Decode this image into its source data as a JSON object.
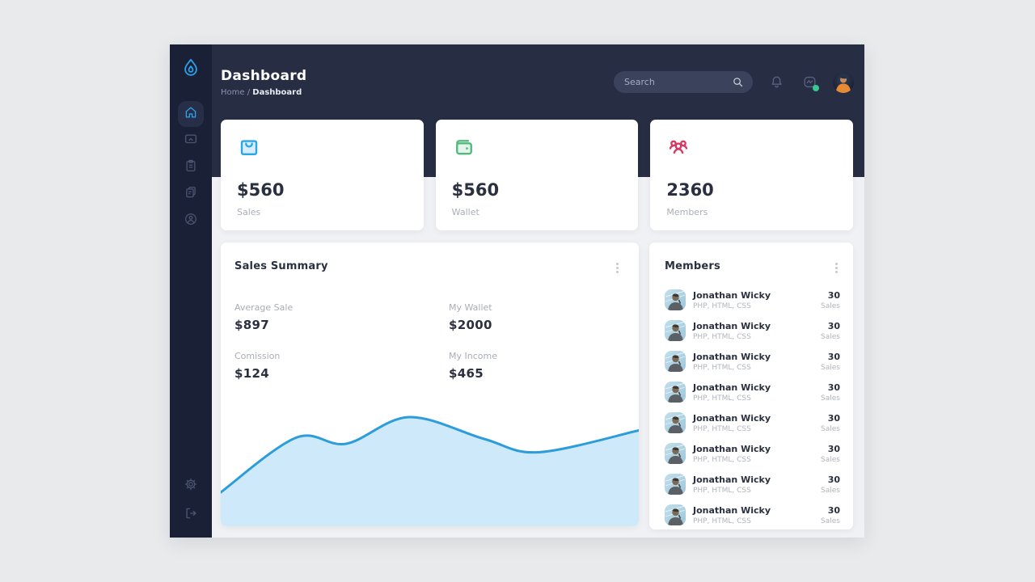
{
  "colors": {
    "outer_background": "#e9eaec",
    "sidebar": "#1a2036",
    "header": "#272e44",
    "content_background": "#f0f1f4",
    "accent_blue": "#2e9fe8",
    "accent_green": "#53b97f",
    "accent_pink": "#d63864",
    "chart_line": "#2d9cdb",
    "chart_fill": "#cde9fa"
  },
  "sidebar": {
    "logo_icon": "drop-logo-icon",
    "items": [
      {
        "id": "home",
        "icon": "home-icon",
        "active": true
      },
      {
        "id": "screen",
        "icon": "screen-share-icon",
        "active": false
      },
      {
        "id": "tasks",
        "icon": "clipboard-icon",
        "active": false
      },
      {
        "id": "documents",
        "icon": "documents-icon",
        "active": false
      },
      {
        "id": "profile",
        "icon": "user-circle-icon",
        "active": false
      }
    ],
    "bottom_items": [
      {
        "id": "settings",
        "icon": "gear-icon"
      },
      {
        "id": "logout",
        "icon": "logout-icon"
      }
    ]
  },
  "header": {
    "title": "Dashboard",
    "breadcrumb": {
      "home": "Home",
      "separator": "/",
      "current": "Dashboard"
    },
    "search": {
      "placeholder": "Search",
      "icon": "search-icon"
    },
    "icons": [
      "bell-icon",
      "chat-icon"
    ],
    "chat_status_dot_color": "#37c98e",
    "avatar": "user-avatar"
  },
  "stat_cards": [
    {
      "icon": "shopping-bag-icon",
      "value": "$560",
      "label": "Sales",
      "accent": "#2aa5e5"
    },
    {
      "icon": "wallet-icon",
      "value": "$560",
      "label": "Wallet",
      "accent": "#53b97f"
    },
    {
      "icon": "members-icon",
      "value": "2360",
      "label": "Members",
      "accent": "#d63864"
    }
  ],
  "sales_summary": {
    "title": "Sales Summary",
    "menu_icon": "kebab-menu-icon",
    "stats": [
      {
        "label": "Average Sale",
        "value": "$897"
      },
      {
        "label": "My Wallet",
        "value": "$2000"
      },
      {
        "label": "Comission",
        "value": "$124"
      },
      {
        "label": "My Income",
        "value": "$465"
      }
    ]
  },
  "chart_data": {
    "type": "area",
    "title": "",
    "xlabel": "",
    "ylabel": "",
    "x": [
      0,
      0.18,
      0.3,
      0.45,
      0.63,
      0.76,
      1.0
    ],
    "values": [
      28,
      73,
      68,
      90,
      72,
      61,
      79
    ],
    "ylim": [
      0,
      100
    ],
    "grid": false,
    "legend": false,
    "axes_visible": false,
    "line_color": "#2d9cdb",
    "fill_color": "#cde9fa"
  },
  "members_panel": {
    "title": "Members",
    "menu_icon": "kebab-menu-icon",
    "rows": [
      {
        "name": "Jonathan Wicky",
        "skills": "PHP, HTML, CSS",
        "count": "30",
        "count_label": "Sales"
      },
      {
        "name": "Jonathan Wicky",
        "skills": "PHP, HTML, CSS",
        "count": "30",
        "count_label": "Sales"
      },
      {
        "name": "Jonathan Wicky",
        "skills": "PHP, HTML, CSS",
        "count": "30",
        "count_label": "Sales"
      },
      {
        "name": "Jonathan Wicky",
        "skills": "PHP, HTML, CSS",
        "count": "30",
        "count_label": "Sales"
      },
      {
        "name": "Jonathan Wicky",
        "skills": "PHP, HTML, CSS",
        "count": "30",
        "count_label": "Sales"
      },
      {
        "name": "Jonathan Wicky",
        "skills": "PHP, HTML, CSS",
        "count": "30",
        "count_label": "Sales"
      },
      {
        "name": "Jonathan Wicky",
        "skills": "PHP, HTML, CSS",
        "count": "30",
        "count_label": "Sales"
      },
      {
        "name": "Jonathan Wicky",
        "skills": "PHP, HTML, CSS",
        "count": "30",
        "count_label": "Sales"
      }
    ]
  }
}
